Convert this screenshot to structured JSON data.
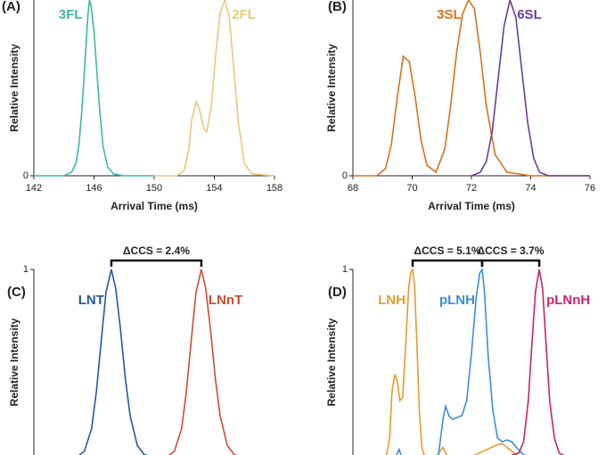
{
  "chart_data": [
    {
      "type": "line",
      "label": "(A)",
      "xlabel": "Arrival Time (ms)",
      "ylabel": "Relative Intensity",
      "xlim": [
        142,
        158
      ],
      "xticks": [
        142,
        146,
        150,
        154,
        158
      ],
      "ylim": [
        0,
        1
      ],
      "yticks": [
        0
      ],
      "series": [
        {
          "name": "3FL",
          "color": "#3bb8a6",
          "x": [
            142,
            144,
            144.5,
            144.8,
            145.0,
            145.2,
            145.4,
            145.6,
            145.7,
            145.8,
            146.0,
            146.2,
            146.4,
            146.6,
            146.9,
            147.3,
            148,
            150
          ],
          "values": [
            0,
            0,
            0.02,
            0.07,
            0.18,
            0.38,
            0.65,
            0.92,
            1,
            0.97,
            0.82,
            0.58,
            0.35,
            0.17,
            0.05,
            0.01,
            0,
            0
          ]
        },
        {
          "name": "2FL",
          "color": "#e9c77a",
          "x": [
            150,
            151.5,
            152.0,
            152.3,
            152.5,
            152.8,
            153.0,
            153.3,
            153.5,
            153.8,
            154.1,
            154.4,
            154.7,
            155.0,
            155.3,
            155.6,
            156.0,
            156.5,
            158
          ],
          "values": [
            0,
            0,
            0.03,
            0.15,
            0.32,
            0.42,
            0.38,
            0.27,
            0.25,
            0.4,
            0.7,
            0.93,
            1,
            0.9,
            0.6,
            0.3,
            0.07,
            0.01,
            0
          ]
        }
      ]
    },
    {
      "type": "line",
      "label": "(B)",
      "xlabel": "Arrival Time (ms)",
      "ylabel": "Relative Intensity",
      "xlim": [
        68,
        76
      ],
      "xticks": [
        68,
        70,
        72,
        74,
        76
      ],
      "ylim": [
        0,
        1
      ],
      "yticks": [
        0
      ],
      "series": [
        {
          "name": "3SL",
          "color": "#d9711f",
          "x": [
            68,
            68.8,
            69.1,
            69.3,
            69.5,
            69.7,
            69.9,
            70.1,
            70.3,
            70.5,
            70.8,
            71.1,
            71.3,
            71.5,
            71.7,
            71.9,
            72.1,
            72.3,
            72.5,
            72.8,
            73.2,
            74,
            76
          ],
          "values": [
            0,
            0,
            0.04,
            0.18,
            0.45,
            0.68,
            0.65,
            0.45,
            0.2,
            0.06,
            0.02,
            0.15,
            0.4,
            0.7,
            0.92,
            1,
            0.95,
            0.7,
            0.4,
            0.12,
            0.02,
            0,
            0
          ]
        },
        {
          "name": "6SL",
          "color": "#6a3d9a",
          "x": [
            72,
            72.3,
            72.5,
            72.7,
            72.9,
            73.1,
            73.3,
            73.5,
            73.7,
            73.9,
            74.1,
            74.3,
            74.6,
            76
          ],
          "values": [
            0,
            0.02,
            0.08,
            0.25,
            0.55,
            0.85,
            1,
            0.9,
            0.6,
            0.3,
            0.1,
            0.02,
            0,
            0
          ]
        }
      ]
    },
    {
      "type": "line",
      "label": "(C)",
      "ylabel": "Relative Intensity",
      "xlim": [
        0,
        100
      ],
      "ylim": [
        0,
        1
      ],
      "yticks": [
        1
      ],
      "annotations": [
        "ΔCCS = 2.4%"
      ],
      "series": [
        {
          "name": "LNT",
          "color": "#1f5aa0",
          "x": [
            0,
            18,
            21,
            24,
            26,
            28,
            30,
            32.2,
            34,
            36,
            38,
            40,
            43,
            46,
            50
          ],
          "values": [
            0,
            0,
            0.03,
            0.15,
            0.35,
            0.62,
            0.88,
            1,
            0.9,
            0.68,
            0.42,
            0.22,
            0.06,
            0.01,
            0
          ]
        },
        {
          "name": "LNnT",
          "color": "#d04a2f",
          "x": [
            50,
            55.4,
            58.4,
            61.4,
            63.4,
            65.4,
            67.4,
            69.6,
            71.4,
            73.4,
            75.4,
            77.4,
            80.4,
            83.4,
            87
          ],
          "values": [
            0,
            0,
            0.03,
            0.15,
            0.35,
            0.62,
            0.88,
            1,
            0.9,
            0.68,
            0.42,
            0.22,
            0.06,
            0.01,
            0
          ]
        }
      ]
    },
    {
      "type": "line",
      "label": "(D)",
      "ylabel": "Relative Intensity",
      "xlim": [
        0,
        100
      ],
      "ylim": [
        0,
        1
      ],
      "yticks": [
        1
      ],
      "annotations": [
        "ΔCCS = 5.1%",
        "ΔCCS = 3.7%"
      ],
      "series": [
        {
          "name": "LNH",
          "color": "#e89a2e",
          "x": [
            14,
            15.5,
            16.5,
            17.7,
            18.8,
            19.8,
            21,
            22.5,
            23.5,
            24.5,
            25.2,
            26,
            27,
            28,
            29,
            30,
            32,
            35,
            38,
            40,
            43,
            50,
            55,
            60,
            63,
            66,
            70,
            75
          ],
          "values": [
            0,
            0.1,
            0.35,
            0.44,
            0.4,
            0.3,
            0.32,
            0.65,
            0.9,
            0.99,
            1,
            0.92,
            0.6,
            0.25,
            0.06,
            0.01,
            0,
            0,
            0.05,
            0,
            0,
            0,
            0.03,
            0.06,
            0.07,
            0.04,
            0,
            0
          ]
        },
        {
          "name": "pLNH",
          "color": "#3a8fd9",
          "x": [
            18,
            19.5,
            20.5,
            22,
            30,
            36,
            38,
            39.1,
            40.5,
            42,
            44,
            46,
            48,
            50,
            52,
            53.5,
            54.5,
            55.5,
            57,
            59,
            61,
            63,
            65,
            67,
            69,
            72,
            76
          ],
          "values": [
            0,
            0.04,
            0,
            0,
            0,
            0,
            0.2,
            0.27,
            0.22,
            0.2,
            0.21,
            0.22,
            0.3,
            0.55,
            0.85,
            0.98,
            1,
            0.88,
            0.55,
            0.25,
            0.1,
            0.08,
            0.09,
            0.08,
            0.05,
            0.01,
            0
          ]
        },
        {
          "name": "pLNnH",
          "color": "#c8246a",
          "x": [
            65,
            70,
            72,
            74,
            75.5,
            77,
            78.6,
            80,
            81.5,
            83,
            85,
            87,
            90
          ],
          "values": [
            0,
            0.02,
            0.08,
            0.3,
            0.6,
            0.88,
            1,
            0.9,
            0.6,
            0.3,
            0.1,
            0.02,
            0
          ]
        }
      ]
    }
  ]
}
